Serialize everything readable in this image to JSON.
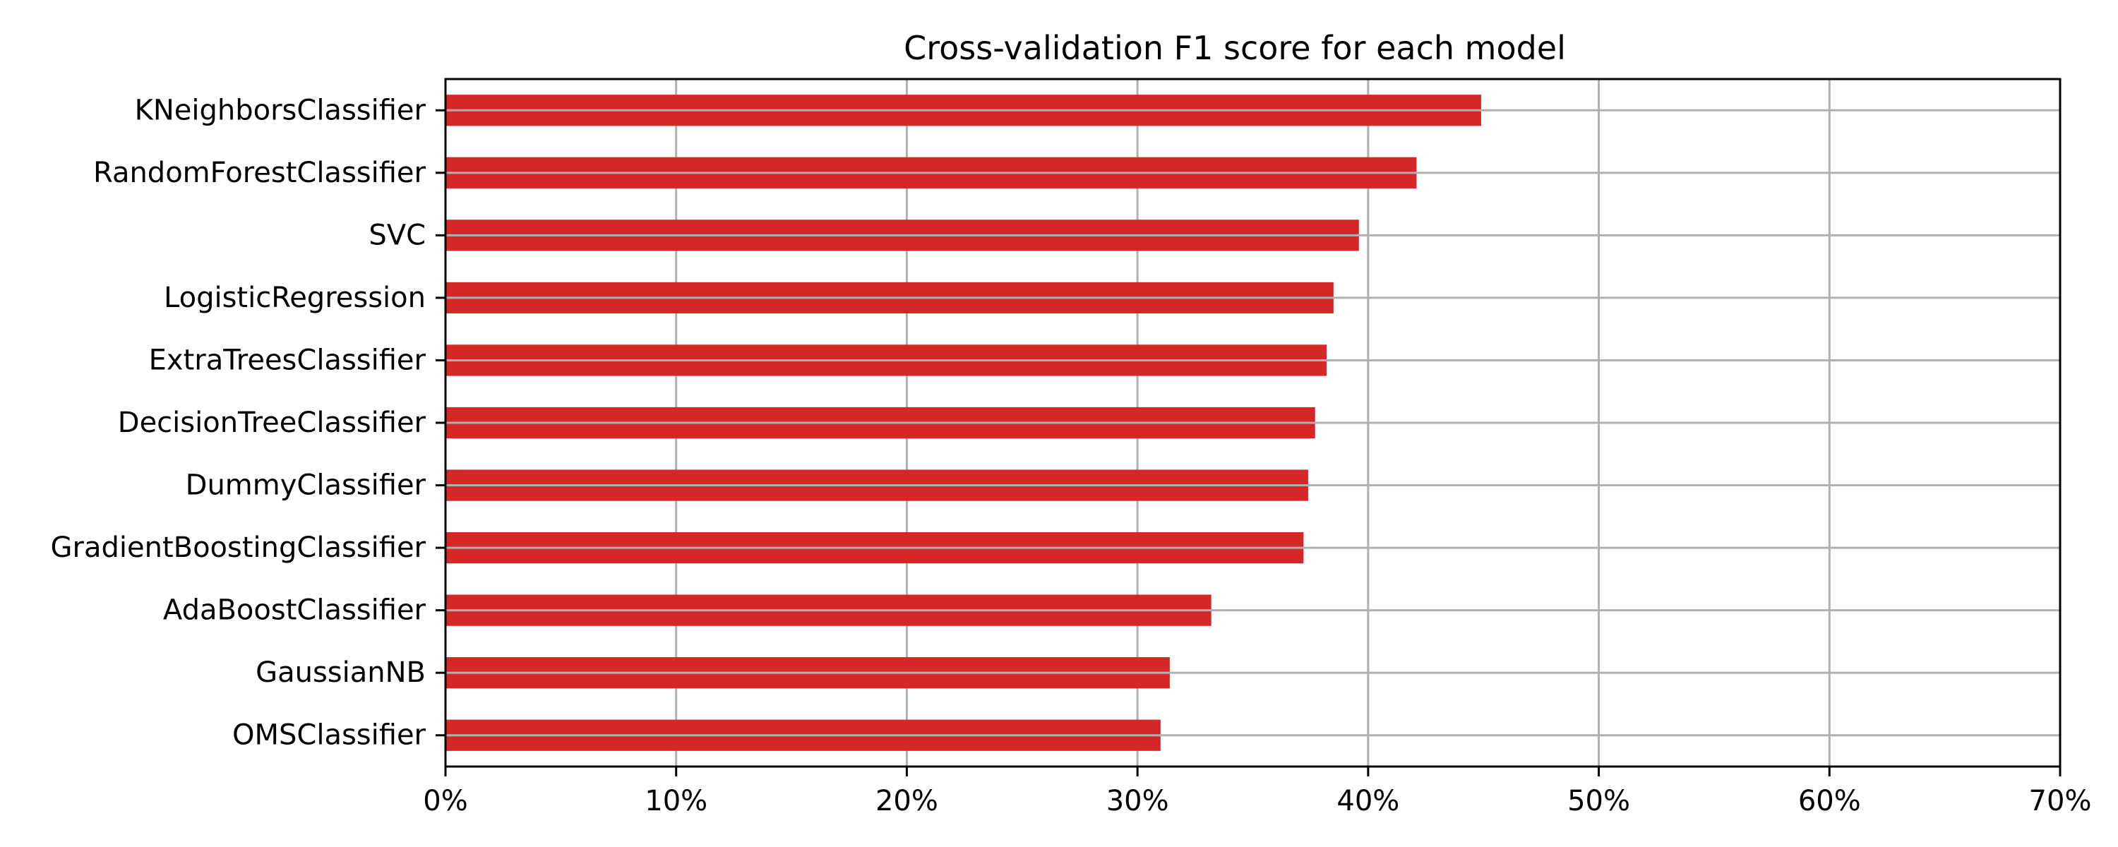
{
  "chart_data": {
    "type": "bar",
    "orientation": "horizontal",
    "title": "Cross-validation F1 score for each model",
    "xlabel": "",
    "ylabel": "",
    "categories": [
      "KNeighborsClassifier",
      "RandomForestClassifier",
      "SVC",
      "LogisticRegression",
      "ExtraTreesClassifier",
      "DecisionTreeClassifier",
      "DummyClassifier",
      "GradientBoostingClassifier",
      "AdaBoostClassifier",
      "GaussianNB",
      "OMSClassifier"
    ],
    "values": [
      44.9,
      42.1,
      39.6,
      38.5,
      38.2,
      37.7,
      37.4,
      37.2,
      33.2,
      31.4,
      31.0
    ],
    "xlim": [
      0,
      70
    ],
    "xticks": [
      0,
      10,
      20,
      30,
      40,
      50,
      60,
      70
    ],
    "xtick_labels": [
      "0%",
      "10%",
      "20%",
      "30%",
      "40%",
      "50%",
      "60%",
      "70%"
    ],
    "grid": true,
    "legend": "none",
    "bar_color": "#d62728",
    "grid_color": "#b0b0b0",
    "axis_color": "#000000"
  }
}
